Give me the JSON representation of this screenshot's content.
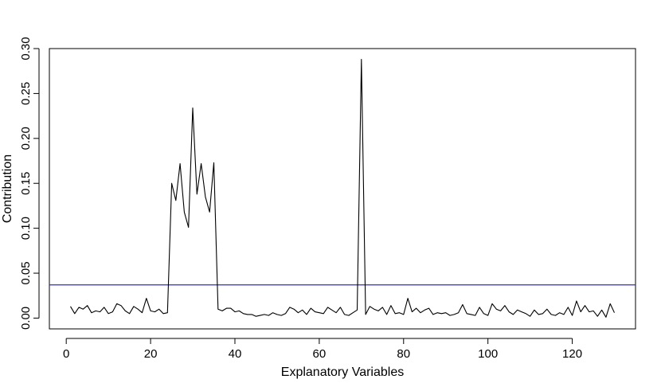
{
  "chart_data": {
    "type": "line",
    "xlabel": "Explanatory Variables",
    "ylabel": "Contribution",
    "xlim": [
      -4,
      135
    ],
    "ylim": [
      -0.012,
      0.3
    ],
    "x_ticks": [
      0,
      20,
      40,
      60,
      80,
      100,
      120
    ],
    "y_ticks": [
      0.0,
      0.05,
      0.1,
      0.15,
      0.2,
      0.25,
      0.3
    ],
    "x_tick_labels": [
      "0",
      "20",
      "40",
      "60",
      "80",
      "100",
      "120"
    ],
    "y_tick_labels": [
      "0.00",
      "0.05",
      "0.10",
      "0.15",
      "0.20",
      "0.25",
      "0.30"
    ],
    "grid": false,
    "threshold": {
      "value": 0.037,
      "color": "#2b2bd9"
    },
    "series": [
      {
        "color": "#000000",
        "x": [
          1,
          2,
          3,
          4,
          5,
          6,
          7,
          8,
          9,
          10,
          11,
          12,
          13,
          14,
          15,
          16,
          17,
          18,
          19,
          20,
          21,
          22,
          23,
          24,
          25,
          26,
          27,
          28,
          29,
          30,
          31,
          32,
          33,
          34,
          35,
          36,
          37,
          38,
          39,
          40,
          41,
          42,
          43,
          44,
          45,
          46,
          47,
          48,
          49,
          50,
          51,
          52,
          53,
          54,
          55,
          56,
          57,
          58,
          59,
          60,
          61,
          62,
          63,
          64,
          65,
          66,
          67,
          68,
          69,
          70,
          71,
          72,
          73,
          74,
          75,
          76,
          77,
          78,
          79,
          80,
          81,
          82,
          83,
          84,
          85,
          86,
          87,
          88,
          89,
          90,
          91,
          92,
          93,
          94,
          95,
          96,
          97,
          98,
          99,
          100,
          101,
          102,
          103,
          104,
          105,
          106,
          107,
          108,
          109,
          110,
          111,
          112,
          113,
          114,
          115,
          116,
          117,
          118,
          119,
          120,
          121,
          122,
          123,
          124,
          125,
          126,
          127,
          128,
          129,
          130
        ],
        "values": [
          0.013,
          0.005,
          0.012,
          0.01,
          0.014,
          0.006,
          0.008,
          0.007,
          0.012,
          0.005,
          0.007,
          0.016,
          0.014,
          0.008,
          0.005,
          0.013,
          0.01,
          0.006,
          0.022,
          0.008,
          0.007,
          0.01,
          0.005,
          0.006,
          0.15,
          0.131,
          0.172,
          0.118,
          0.101,
          0.234,
          0.138,
          0.172,
          0.135,
          0.118,
          0.173,
          0.01,
          0.008,
          0.011,
          0.011,
          0.007,
          0.008,
          0.005,
          0.004,
          0.004,
          0.002,
          0.003,
          0.004,
          0.003,
          0.006,
          0.004,
          0.003,
          0.005,
          0.012,
          0.01,
          0.006,
          0.009,
          0.004,
          0.011,
          0.007,
          0.006,
          0.005,
          0.012,
          0.009,
          0.006,
          0.012,
          0.004,
          0.003,
          0.006,
          0.009,
          0.288,
          0.004,
          0.013,
          0.01,
          0.008,
          0.012,
          0.004,
          0.014,
          0.005,
          0.006,
          0.004,
          0.022,
          0.007,
          0.011,
          0.006,
          0.009,
          0.011,
          0.004,
          0.006,
          0.005,
          0.006,
          0.003,
          0.004,
          0.006,
          0.015,
          0.005,
          0.004,
          0.003,
          0.012,
          0.005,
          0.003,
          0.016,
          0.01,
          0.008,
          0.014,
          0.007,
          0.004,
          0.009,
          0.007,
          0.005,
          0.002,
          0.009,
          0.004,
          0.005,
          0.01,
          0.004,
          0.003,
          0.006,
          0.004,
          0.012,
          0.003,
          0.019,
          0.007,
          0.014,
          0.007,
          0.008,
          0.002,
          0.009,
          0.001,
          0.016,
          0.006
        ]
      }
    ]
  }
}
